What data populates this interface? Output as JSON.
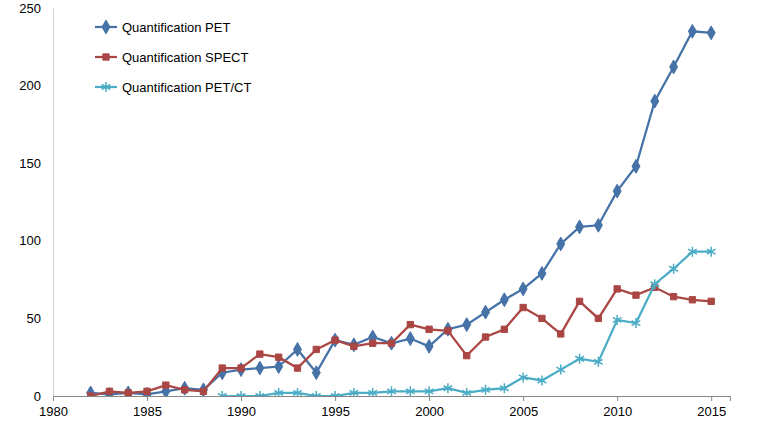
{
  "chart_data": {
    "type": "line",
    "x": [
      1982,
      1983,
      1984,
      1985,
      1986,
      1987,
      1988,
      1989,
      1990,
      1991,
      1992,
      1993,
      1994,
      1995,
      1996,
      1997,
      1998,
      1999,
      2000,
      2001,
      2002,
      2003,
      2004,
      2005,
      2006,
      2007,
      2008,
      2009,
      2010,
      2011,
      2012,
      2013,
      2014,
      2015
    ],
    "series": [
      {
        "name": "Quantification PET",
        "color": "#4572a7",
        "marker": "diamond",
        "values": [
          2,
          1,
          2,
          1,
          3,
          5,
          4,
          15,
          17,
          18,
          19,
          30,
          15,
          36,
          33,
          38,
          34,
          37,
          32,
          43,
          46,
          54,
          62,
          69,
          79,
          98,
          109,
          110,
          132,
          148,
          190,
          212,
          235,
          234
        ]
      },
      {
        "name": "Quantification SPECT",
        "color": "#aa4643",
        "marker": "square",
        "values": [
          0,
          3,
          2,
          3,
          7,
          4,
          3,
          18,
          18,
          27,
          25,
          18,
          30,
          36,
          32,
          34,
          34,
          46,
          43,
          42,
          26,
          38,
          43,
          57,
          50,
          40,
          61,
          50,
          69,
          65,
          70,
          64,
          62,
          61
        ]
      },
      {
        "name": "Quantification PET/CT",
        "color": "#4bacc6",
        "marker": "star",
        "values": [
          null,
          null,
          null,
          null,
          null,
          null,
          null,
          0,
          0,
          0,
          2,
          2,
          0,
          0,
          2,
          2,
          3,
          3,
          3,
          5,
          2,
          4,
          5,
          12,
          10,
          17,
          24,
          22,
          49,
          47,
          72,
          82,
          93,
          93
        ]
      }
    ],
    "xlim": [
      1980,
      2016
    ],
    "xticks": [
      1980,
      1985,
      1990,
      1995,
      2000,
      2005,
      2010,
      2015
    ],
    "ylim": [
      0,
      250
    ],
    "yticks": [
      0,
      50,
      100,
      150,
      200,
      250
    ],
    "grid": false,
    "legend": "top-left"
  }
}
